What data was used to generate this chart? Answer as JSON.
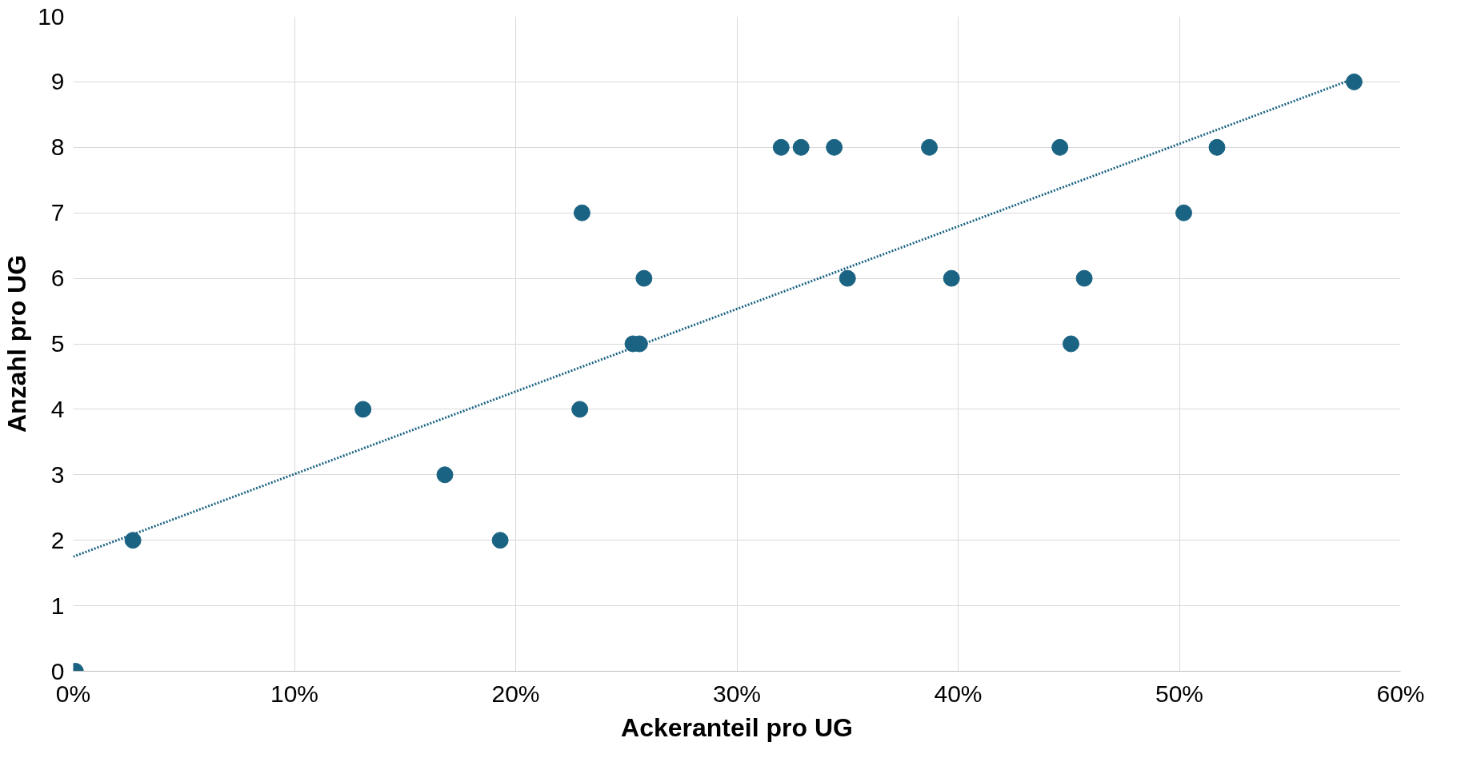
{
  "chart_data": {
    "type": "scatter",
    "xlabel": "Ackeranteil pro UG",
    "ylabel": "Anzahl pro UG",
    "x": [
      0.001,
      0.027,
      0.131,
      0.168,
      0.193,
      0.229,
      0.23,
      0.253,
      0.256,
      0.258,
      0.32,
      0.329,
      0.344,
      0.35,
      0.387,
      0.397,
      0.446,
      0.451,
      0.457,
      0.502,
      0.517,
      0.579
    ],
    "series": [
      {
        "color": "#1b6383",
        "marker": "circle",
        "values": [
          0,
          2,
          4,
          3,
          2,
          4,
          7,
          5,
          5,
          6,
          8,
          8,
          8,
          6,
          8,
          6,
          8,
          5,
          6,
          7,
          8,
          9
        ]
      },
      {
        "type": "line",
        "color": "#1b6383",
        "line_style": "dotted",
        "x": [
          0,
          0.579
        ],
        "values": [
          1.75,
          9.05
        ]
      }
    ],
    "xlim": [
      0,
      0.6
    ],
    "ylim": [
      0,
      10
    ],
    "xticks": [
      {
        "value": 0,
        "label": "0%"
      },
      {
        "value": 0.1,
        "label": "10%"
      },
      {
        "value": 0.2,
        "label": "20%"
      },
      {
        "value": 0.3,
        "label": "30%"
      },
      {
        "value": 0.4,
        "label": "40%"
      },
      {
        "value": 0.5,
        "label": "50%"
      },
      {
        "value": 0.6,
        "label": "60%"
      }
    ],
    "yticks": [
      0,
      1,
      2,
      3,
      4,
      5,
      6,
      7,
      8,
      9,
      10
    ],
    "grid": true
  }
}
